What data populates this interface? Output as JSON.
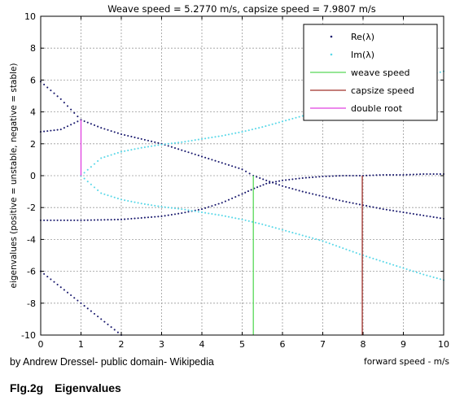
{
  "caption": {
    "credit": "by Andrew Dressel- public domain- Wikipedia",
    "figure_number": "Flg.2g",
    "figure_title": "Eigenvalues"
  },
  "chart_data": {
    "type": "scatter",
    "title": "Weave speed = 5.2770 m/s, capsize speed = 7.9807 m/s",
    "xlabel": "forward speed - m/s",
    "ylabel": "eigenvalues (positive = unstable, negative = stable)",
    "xlim": [
      0,
      10
    ],
    "ylim": [
      -10,
      10
    ],
    "xticks": [
      0,
      1,
      2,
      3,
      4,
      5,
      6,
      7,
      8,
      9,
      10
    ],
    "yticks": [
      10,
      8,
      6,
      4,
      2,
      0,
      -2,
      -4,
      -6,
      -8,
      -10
    ],
    "grid": true,
    "legend_position": "top-right",
    "colors": {
      "re": "#1a1a6e",
      "im": "#5ad8e8",
      "weave": "#58d858",
      "capsize": "#a0302a",
      "double_root": "#e040e0"
    },
    "legend": [
      {
        "label": "Re(λ)",
        "marker": "dot",
        "color": "#1a1a6e"
      },
      {
        "label": "Im(λ)",
        "marker": "dot",
        "color": "#5ad8e8"
      },
      {
        "label": "weave speed",
        "marker": "line",
        "color": "#58d858"
      },
      {
        "label": "capsize speed",
        "marker": "line",
        "color": "#a0302a"
      },
      {
        "label": "double root",
        "marker": "line",
        "color": "#e040e0"
      }
    ],
    "series": [
      {
        "name": "Re(λ)",
        "color": "#1a1a6e",
        "x": [
          0,
          0.5,
          1.0,
          1.5,
          2.0,
          2.5,
          3.0,
          3.5,
          4.0,
          4.5,
          5.0,
          5.277,
          5.6,
          6.0,
          6.5,
          7.0,
          7.5,
          8.0,
          8.5,
          9.0,
          9.5,
          10.0
        ],
        "y": [
          5.9,
          4.8,
          3.5,
          3.0,
          2.6,
          2.3,
          2.0,
          1.6,
          1.2,
          0.8,
          0.4,
          0.0,
          -0.3,
          -0.65,
          -1.0,
          -1.3,
          -1.6,
          -1.85,
          -2.1,
          -2.3,
          -2.5,
          -2.7
        ]
      },
      {
        "name": "Re(λ)",
        "color": "#1a1a6e",
        "x": [
          0,
          1.0,
          2.0,
          3.0,
          3.5,
          4.0,
          4.5,
          5.0,
          5.3,
          5.6,
          6.0,
          6.5,
          7.0,
          7.5,
          8.0,
          8.5,
          9.0,
          9.5,
          10.0
        ],
        "y": [
          -2.8,
          -2.8,
          -2.75,
          -2.55,
          -2.35,
          -2.1,
          -1.7,
          -1.15,
          -0.8,
          -0.5,
          -0.3,
          -0.15,
          -0.05,
          0.0,
          0.0,
          0.05,
          0.05,
          0.1,
          0.1
        ]
      },
      {
        "name": "Re(λ)",
        "color": "#1a1a6e",
        "x": [
          0,
          0.5,
          1.0,
          1.5,
          2.0
        ],
        "y": [
          -6.0,
          -7.0,
          -8.0,
          -9.0,
          -10.0
        ]
      },
      {
        "name": "Re(λ)",
        "color": "#1a1a6e",
        "x": [
          0,
          0.5,
          1.0
        ],
        "y": [
          2.75,
          2.9,
          3.5
        ]
      },
      {
        "name": "Im(λ)",
        "color": "#5ad8e8",
        "x": [
          1.0,
          1.5,
          2.0,
          2.5,
          3.0,
          3.5,
          4.0,
          4.5,
          5.0,
          5.5,
          6.0,
          6.5,
          7.0,
          7.5,
          8.0,
          8.5,
          9.0,
          9.5,
          10.0
        ],
        "y": [
          0.0,
          1.1,
          1.5,
          1.75,
          1.95,
          2.1,
          2.3,
          2.5,
          2.75,
          3.05,
          3.4,
          3.75,
          4.1,
          4.55,
          5.0,
          5.4,
          5.8,
          6.2,
          6.55
        ]
      },
      {
        "name": "Im(λ)",
        "color": "#5ad8e8",
        "x": [
          1.0,
          1.5,
          2.0,
          2.5,
          3.0,
          3.5,
          4.0,
          4.5,
          5.0,
          5.5,
          6.0,
          6.5,
          7.0,
          7.5,
          8.0,
          8.5,
          9.0,
          9.5,
          10.0
        ],
        "y": [
          0.0,
          -1.1,
          -1.5,
          -1.75,
          -1.95,
          -2.1,
          -2.3,
          -2.5,
          -2.75,
          -3.05,
          -3.4,
          -3.75,
          -4.1,
          -4.55,
          -5.0,
          -5.4,
          -5.8,
          -6.2,
          -6.55
        ]
      },
      {
        "name": "weave speed",
        "color": "#58d858",
        "x": [
          5.277,
          5.277
        ],
        "y": [
          -10,
          0
        ]
      },
      {
        "name": "capsize speed",
        "color": "#a0302a",
        "x": [
          7.9807,
          7.9807
        ],
        "y": [
          -10,
          0
        ]
      },
      {
        "name": "double root",
        "color": "#e040e0",
        "x": [
          1.0,
          1.0
        ],
        "y": [
          0,
          3.5
        ]
      }
    ]
  }
}
